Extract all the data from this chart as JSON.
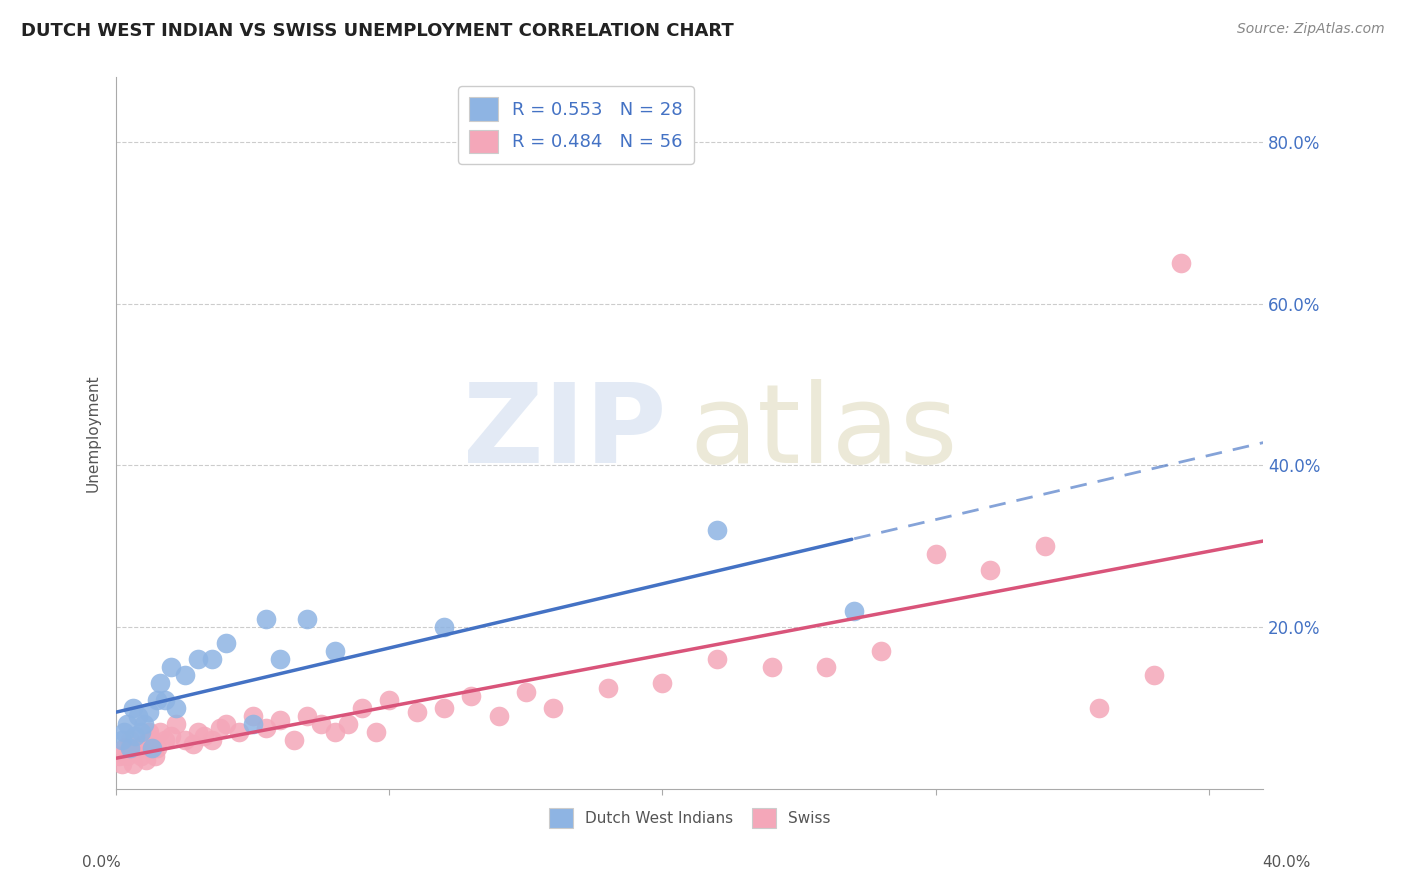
{
  "title": "DUTCH WEST INDIAN VS SWISS UNEMPLOYMENT CORRELATION CHART",
  "source": "Source: ZipAtlas.com",
  "ylabel": "Unemployment",
  "xlim": [
    0.0,
    0.42
  ],
  "ylim": [
    0.0,
    0.88
  ],
  "legend_r1": "R = 0.553   N = 28",
  "legend_r2": "R = 0.484   N = 56",
  "blue_color": "#8eb4e3",
  "pink_color": "#f4a7b9",
  "blue_line_color": "#4472c4",
  "pink_line_color": "#d9547a",
  "label_color": "#4472c4",
  "dutch_west_indians_x": [
    0.002,
    0.003,
    0.004,
    0.005,
    0.006,
    0.007,
    0.008,
    0.009,
    0.01,
    0.012,
    0.013,
    0.015,
    0.016,
    0.018,
    0.02,
    0.022,
    0.025,
    0.03,
    0.035,
    0.04,
    0.05,
    0.055,
    0.06,
    0.07,
    0.08,
    0.12,
    0.22,
    0.27
  ],
  "dutch_west_indians_y": [
    0.06,
    0.07,
    0.08,
    0.05,
    0.1,
    0.065,
    0.09,
    0.07,
    0.08,
    0.095,
    0.05,
    0.11,
    0.13,
    0.11,
    0.15,
    0.1,
    0.14,
    0.16,
    0.16,
    0.18,
    0.08,
    0.21,
    0.16,
    0.21,
    0.17,
    0.2,
    0.32,
    0.22
  ],
  "swiss_x": [
    0.001,
    0.002,
    0.003,
    0.004,
    0.005,
    0.006,
    0.007,
    0.008,
    0.009,
    0.01,
    0.011,
    0.012,
    0.013,
    0.014,
    0.015,
    0.016,
    0.018,
    0.02,
    0.022,
    0.025,
    0.028,
    0.03,
    0.032,
    0.035,
    0.038,
    0.04,
    0.045,
    0.05,
    0.055,
    0.06,
    0.065,
    0.07,
    0.075,
    0.08,
    0.085,
    0.09,
    0.095,
    0.1,
    0.11,
    0.12,
    0.13,
    0.14,
    0.15,
    0.16,
    0.18,
    0.2,
    0.22,
    0.24,
    0.26,
    0.28,
    0.3,
    0.32,
    0.34,
    0.36,
    0.38,
    0.39
  ],
  "swiss_y": [
    0.04,
    0.03,
    0.05,
    0.04,
    0.06,
    0.03,
    0.045,
    0.05,
    0.04,
    0.055,
    0.035,
    0.07,
    0.06,
    0.04,
    0.05,
    0.07,
    0.06,
    0.065,
    0.08,
    0.06,
    0.055,
    0.07,
    0.065,
    0.06,
    0.075,
    0.08,
    0.07,
    0.09,
    0.075,
    0.085,
    0.06,
    0.09,
    0.08,
    0.07,
    0.08,
    0.1,
    0.07,
    0.11,
    0.095,
    0.1,
    0.115,
    0.09,
    0.12,
    0.1,
    0.125,
    0.13,
    0.16,
    0.15,
    0.15,
    0.17,
    0.29,
    0.27,
    0.3,
    0.1,
    0.14,
    0.65
  ],
  "ytick_vals": [
    0.2,
    0.4,
    0.6,
    0.8
  ],
  "ytick_labels": [
    "20.0%",
    "40.0%",
    "60.0%",
    "80.0%"
  ],
  "xtick_vals": [
    0.0,
    0.1,
    0.2,
    0.3,
    0.4
  ],
  "bottom_legend_labels": [
    "Dutch West Indians",
    "Swiss"
  ]
}
